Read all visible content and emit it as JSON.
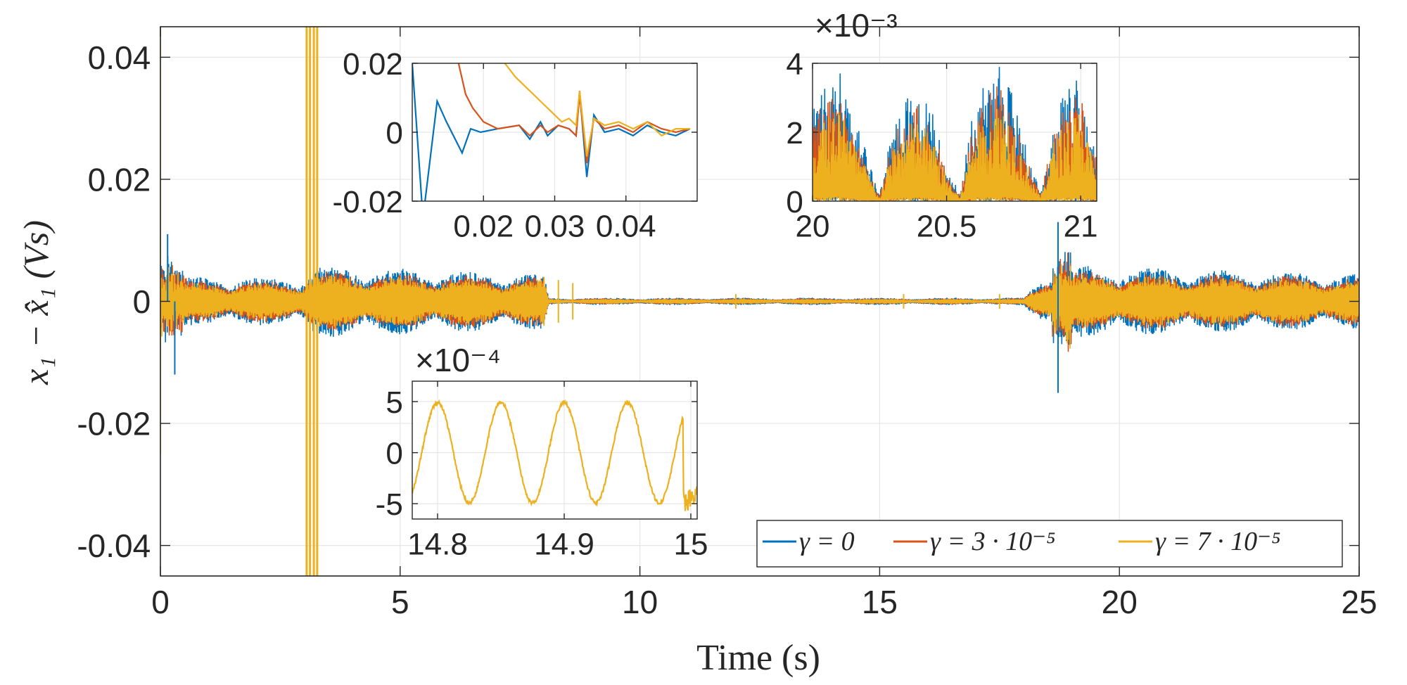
{
  "chart_data": {
    "type": "line",
    "main": {
      "xlabel": "Time (s)",
      "ylabel": "x₁ − x̂₁ (Vs)",
      "xlim": [
        0,
        25
      ],
      "ylim": [
        -0.045,
        0.045
      ],
      "xticks": [
        0,
        5,
        10,
        15,
        20,
        25
      ],
      "xtick_labels": [
        "0",
        "5",
        "10",
        "15",
        "20",
        "25"
      ],
      "yticks": [
        -0.04,
        -0.02,
        0,
        0.02,
        0.04
      ],
      "ytick_labels": [
        "-0.04",
        "-0.02",
        "0",
        "0.02",
        "0.04"
      ],
      "grid": true,
      "legend_position": "bottom-right",
      "series": [
        {
          "name": "γ = 0",
          "color": "#0072BD",
          "envelope": [
            [
              0,
              0.004
            ],
            [
              3.0,
              0.004
            ],
            [
              3.2,
              0.006
            ],
            [
              8.0,
              0.0045
            ],
            [
              8.1,
              0.0006
            ],
            [
              18.0,
              0.0006
            ],
            [
              18.6,
              0.006
            ],
            [
              25,
              0.0045
            ]
          ]
        },
        {
          "name": "γ = 3 · 10⁻⁵",
          "color": "#D95319",
          "envelope": [
            [
              0,
              0.0035
            ],
            [
              3.0,
              0.0035
            ],
            [
              3.2,
              0.005
            ],
            [
              8.0,
              0.004
            ],
            [
              8.1,
              0.0005
            ],
            [
              18.0,
              0.0005
            ],
            [
              18.6,
              0.005
            ],
            [
              25,
              0.004
            ]
          ]
        },
        {
          "name": "γ = 7 · 10⁻⁵",
          "color": "#EDB120",
          "envelope": [
            [
              0,
              0.003
            ],
            [
              3.0,
              0.003
            ],
            [
              3.2,
              0.0045
            ],
            [
              8.0,
              0.0035
            ],
            [
              8.1,
              0.0004
            ],
            [
              18.0,
              0.0004
            ],
            [
              18.6,
              0.0045
            ],
            [
              25,
              0.0035
            ]
          ]
        }
      ]
    },
    "inset_top_left": {
      "xlim": [
        0.01,
        0.05
      ],
      "ylim": [
        -0.02,
        0.02
      ],
      "xticks": [
        0.02,
        0.03,
        0.04
      ],
      "xtick_labels": [
        "0.02",
        "0.03",
        "0.04"
      ],
      "yticks": [
        -0.02,
        0,
        0.02
      ],
      "ytick_labels": [
        "-0.02",
        "0",
        "0.02"
      ],
      "series": [
        {
          "name": "γ = 0",
          "x": [
            0.01,
            0.0115,
            0.0135,
            0.0148,
            0.017,
            0.0182,
            0.0196,
            0.022,
            0.025,
            0.0265,
            0.028,
            0.029,
            0.0305,
            0.032,
            0.033,
            0.0335,
            0.0345,
            0.0355,
            0.037,
            0.039,
            0.041,
            0.043,
            0.045,
            0.047,
            0.049
          ],
          "y": [
            0.02,
            -0.025,
            0.009,
            0.003,
            -0.006,
            0.001,
            0,
            0.001,
            0.002,
            -0.002,
            0.003,
            -0.001,
            0.002,
            0.001,
            -0.001,
            0.012,
            -0.013,
            0.005,
            0,
            0.001,
            -0.001,
            0.002,
            0,
            -0.001,
            0.001
          ]
        },
        {
          "name": "γ = 3 · 10⁻⁵",
          "x": [
            0.0155,
            0.0165,
            0.0175,
            0.0185,
            0.02,
            0.022,
            0.025,
            0.0265,
            0.028,
            0.029,
            0.0305,
            0.032,
            0.033,
            0.0335,
            0.0345,
            0.0355,
            0.037,
            0.039,
            0.041,
            0.043,
            0.045,
            0.047,
            0.049
          ],
          "y": [
            0.025,
            0.02,
            0.011,
            0.007,
            0.003,
            0.001,
            0.002,
            -0.001,
            0.002,
            0,
            0.002,
            0.001,
            -0.001,
            0.011,
            -0.009,
            0.004,
            0.001,
            0.002,
            0,
            0.003,
            0.001,
            0,
            0.001
          ]
        },
        {
          "name": "γ = 7 · 10⁻⁵",
          "x": [
            0.022,
            0.023,
            0.0245,
            0.026,
            0.0275,
            0.0295,
            0.031,
            0.032,
            0.033,
            0.0335,
            0.0345,
            0.0355,
            0.037,
            0.039,
            0.041,
            0.043,
            0.045,
            0.047,
            0.049
          ],
          "y": [
            0.025,
            0.02,
            0.016,
            0.013,
            0.01,
            0.006,
            0.003,
            0.004,
            0.002,
            0.012,
            -0.007,
            0.004,
            0.002,
            0.003,
            0.001,
            0.003,
            -0.001,
            0.001,
            0.001
          ]
        }
      ]
    },
    "inset_top_right": {
      "exponent_label": "×10⁻³",
      "xlim": [
        20,
        21.06
      ],
      "ylim": [
        0,
        4
      ],
      "xticks": [
        20,
        20.5,
        21
      ],
      "xtick_labels": [
        "20",
        "20.5",
        "21"
      ],
      "yticks": [
        0,
        2,
        4
      ],
      "ytick_labels": [
        "0",
        "2",
        "4"
      ],
      "envelope_x": [
        20.0,
        20.05,
        20.1,
        20.15,
        20.2,
        20.25,
        20.3,
        20.35,
        20.4,
        20.45,
        20.5,
        20.55,
        20.6,
        20.65,
        20.7,
        20.75,
        20.8,
        20.85,
        20.9,
        20.95,
        21.0,
        21.05
      ],
      "series": [
        {
          "name": "γ = 0",
          "envelope": [
            2.8,
            3.5,
            3.8,
            2.5,
            1.5,
            0.2,
            2.2,
            3.0,
            3.2,
            2.5,
            1.0,
            0.2,
            2.8,
            3.5,
            4.2,
            3.0,
            1.5,
            0.2,
            2.5,
            3.4,
            3.8,
            1.5
          ]
        },
        {
          "name": "γ = 3 · 10⁻⁵",
          "envelope": [
            2.4,
            3.0,
            3.2,
            2.1,
            1.2,
            0.15,
            1.9,
            2.6,
            2.8,
            2.1,
            0.8,
            0.15,
            2.4,
            3.0,
            3.6,
            2.6,
            1.2,
            0.15,
            2.1,
            2.9,
            3.2,
            1.3
          ]
        },
        {
          "name": "γ = 7 · 10⁻⁵",
          "envelope": [
            2.0,
            2.5,
            2.7,
            1.8,
            1.0,
            0.1,
            1.6,
            2.2,
            2.4,
            1.8,
            0.7,
            0.1,
            2.0,
            2.5,
            3.0,
            2.2,
            1.0,
            0.1,
            1.8,
            2.4,
            2.7,
            1.1
          ]
        }
      ]
    },
    "inset_bottom": {
      "exponent_label": "×10⁻⁴",
      "xlim": [
        14.78,
        15.005
      ],
      "ylim": [
        -6.5,
        7
      ],
      "xticks": [
        14.8,
        14.9,
        15
      ],
      "xtick_labels": [
        "14.8",
        "14.9",
        "15"
      ],
      "yticks": [
        -5,
        0,
        5
      ],
      "ytick_labels": [
        "-5",
        "0",
        "5"
      ],
      "series": [
        {
          "name": "γ = 7 · 10⁻⁵",
          "amplitude": 4.9,
          "period": 0.05,
          "peak_at": 14.85
        }
      ]
    }
  }
}
